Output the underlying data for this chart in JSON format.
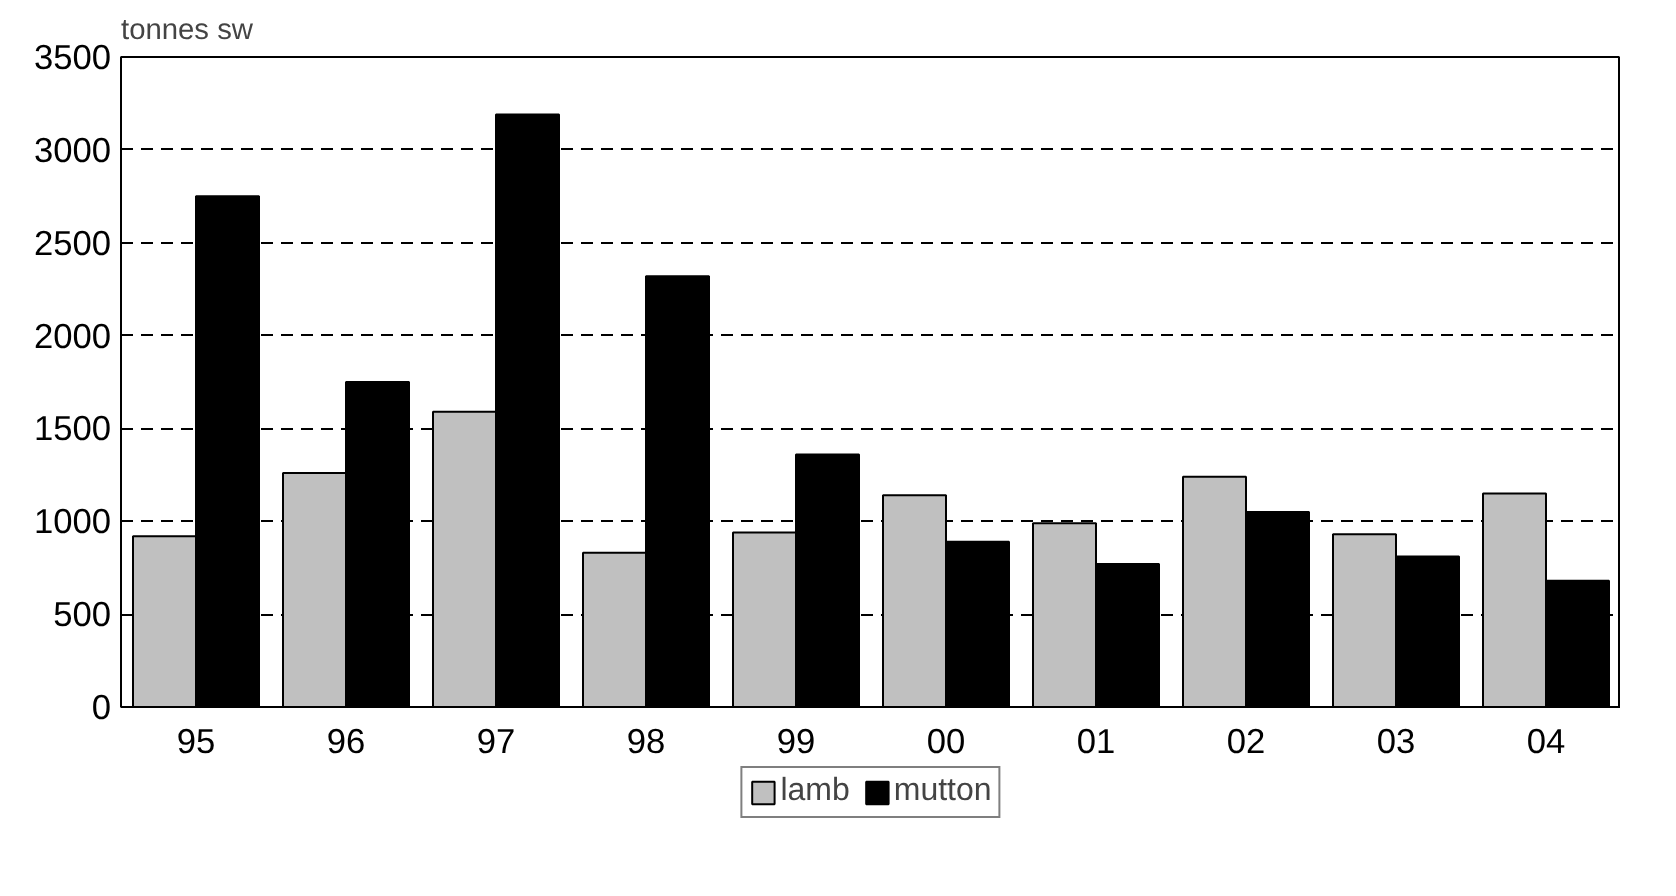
{
  "chart_data": {
    "type": "bar",
    "ylabel": "tonnes sw",
    "categories": [
      "95",
      "96",
      "97",
      "98",
      "99",
      "00",
      "01",
      "02",
      "03",
      "04"
    ],
    "series": [
      {
        "name": "lamb",
        "color": "#c0c0c0",
        "values": [
          920,
          1260,
          1590,
          830,
          940,
          1140,
          990,
          1240,
          930,
          1150
        ]
      },
      {
        "name": "mutton",
        "color": "#000000",
        "values": [
          2750,
          1750,
          3190,
          2320,
          1360,
          890,
          770,
          1050,
          810,
          680
        ]
      }
    ],
    "ylim": [
      0,
      3500
    ],
    "yticks": [
      0,
      500,
      1000,
      1500,
      2000,
      2500,
      3000,
      3500
    ],
    "grid": "y",
    "legend": "bottom"
  }
}
